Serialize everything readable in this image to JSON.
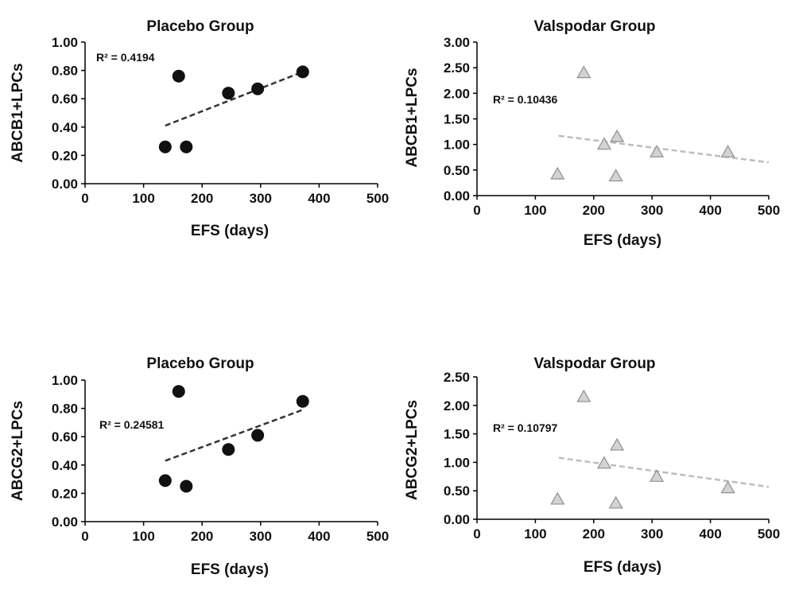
{
  "colors": {
    "placebo_marker": "#111111",
    "valspodar_marker": "#d3d3d3",
    "valspodar_marker_stroke": "#8f8f8f",
    "placebo_trend": "#333333",
    "valspodar_trend": "#bdbdbd",
    "axis": "#000000"
  },
  "chart_data": [
    {
      "type": "scatter",
      "title": "Placebo Group",
      "xlabel": "EFS (days)",
      "ylabel": "ABCB1+LPCs",
      "xlim": [
        0,
        500
      ],
      "ylim": [
        0,
        1.0
      ],
      "xticks": [
        0,
        100,
        200,
        300,
        400,
        500
      ],
      "xtick_labels": [
        "0",
        "100",
        "200",
        "300",
        "400",
        "500"
      ],
      "yticks": [
        0,
        0.2,
        0.4,
        0.6,
        0.8,
        1.0
      ],
      "ytick_labels": [
        "0.00",
        "0.20",
        "0.40",
        "0.60",
        "0.80",
        "1.00"
      ],
      "grid": false,
      "marker": "circle",
      "x": [
        137,
        160,
        173,
        245,
        295,
        372
      ],
      "y": [
        0.26,
        0.76,
        0.26,
        0.64,
        0.67,
        0.79
      ],
      "trendline": {
        "x": [
          137,
          372
        ],
        "y": [
          0.41,
          0.79
        ]
      },
      "annotation": "R² = 0.4194",
      "annotation_pos": {
        "x": 20,
        "y": 0.88
      }
    },
    {
      "type": "scatter",
      "title": "Valspodar Group",
      "xlabel": "EFS (days)",
      "ylabel": "ABCB1+LPCs",
      "xlim": [
        0,
        500
      ],
      "ylim": [
        0,
        3.0
      ],
      "xticks": [
        0,
        100,
        200,
        300,
        400,
        500
      ],
      "xtick_labels": [
        "0",
        "100",
        "200",
        "300",
        "400",
        "500"
      ],
      "yticks": [
        0,
        0.5,
        1.0,
        1.5,
        2.0,
        2.5,
        3.0
      ],
      "ytick_labels": [
        "0.00",
        "0.50",
        "1.00",
        "1.50",
        "2.00",
        "2.50",
        "3.00"
      ],
      "grid": false,
      "marker": "triangle",
      "x": [
        138,
        183,
        218,
        240,
        238,
        308,
        430
      ],
      "y": [
        0.42,
        2.4,
        1.0,
        1.15,
        0.38,
        0.85,
        0.85
      ],
      "trendline": {
        "x": [
          140,
          500
        ],
        "y": [
          1.17,
          0.65
        ]
      },
      "annotation": "R² = 0.10436",
      "annotation_pos": {
        "x": 30,
        "y": 1.95
      }
    },
    {
      "type": "scatter",
      "title": "Placebo Group",
      "xlabel": "EFS (days)",
      "ylabel": "ABCG2+LPCs",
      "xlim": [
        0,
        500
      ],
      "ylim": [
        0,
        1.0
      ],
      "xticks": [
        0,
        100,
        200,
        300,
        400,
        500
      ],
      "xtick_labels": [
        "0",
        "100",
        "200",
        "300",
        "400",
        "500"
      ],
      "yticks": [
        0,
        0.2,
        0.4,
        0.6,
        0.8,
        1.0
      ],
      "ytick_labels": [
        "0.00",
        "0.20",
        "0.40",
        "0.60",
        "0.80",
        "1.00"
      ],
      "grid": false,
      "marker": "circle",
      "x": [
        137,
        160,
        173,
        245,
        295,
        372
      ],
      "y": [
        0.29,
        0.92,
        0.25,
        0.51,
        0.61,
        0.85
      ],
      "trendline": {
        "x": [
          137,
          372
        ],
        "y": [
          0.43,
          0.79
        ]
      },
      "annotation": "R² = 0.24581",
      "annotation_pos": {
        "x": 25,
        "y": 0.68
      }
    },
    {
      "type": "scatter",
      "title": "Valspodar Group",
      "xlabel": "EFS (days)",
      "ylabel": "ABCG2+LPCs",
      "xlim": [
        0,
        500
      ],
      "ylim": [
        0,
        2.5
      ],
      "xticks": [
        0,
        100,
        200,
        300,
        400,
        500
      ],
      "xtick_labels": [
        "0",
        "100",
        "200",
        "300",
        "400",
        "500"
      ],
      "yticks": [
        0,
        0.5,
        1.0,
        1.5,
        2.0,
        2.5
      ],
      "ytick_labels": [
        "0.00",
        "0.50",
        "1.00",
        "1.50",
        "2.00",
        "2.50"
      ],
      "grid": false,
      "marker": "triangle",
      "x": [
        138,
        183,
        218,
        240,
        238,
        308,
        430
      ],
      "y": [
        0.35,
        2.15,
        0.98,
        1.3,
        0.28,
        0.75,
        0.55
      ],
      "trendline": {
        "x": [
          140,
          500
        ],
        "y": [
          1.08,
          0.57
        ]
      },
      "annotation": "R² = 0.10797",
      "annotation_pos": {
        "x": 30,
        "y": 1.55
      }
    }
  ]
}
